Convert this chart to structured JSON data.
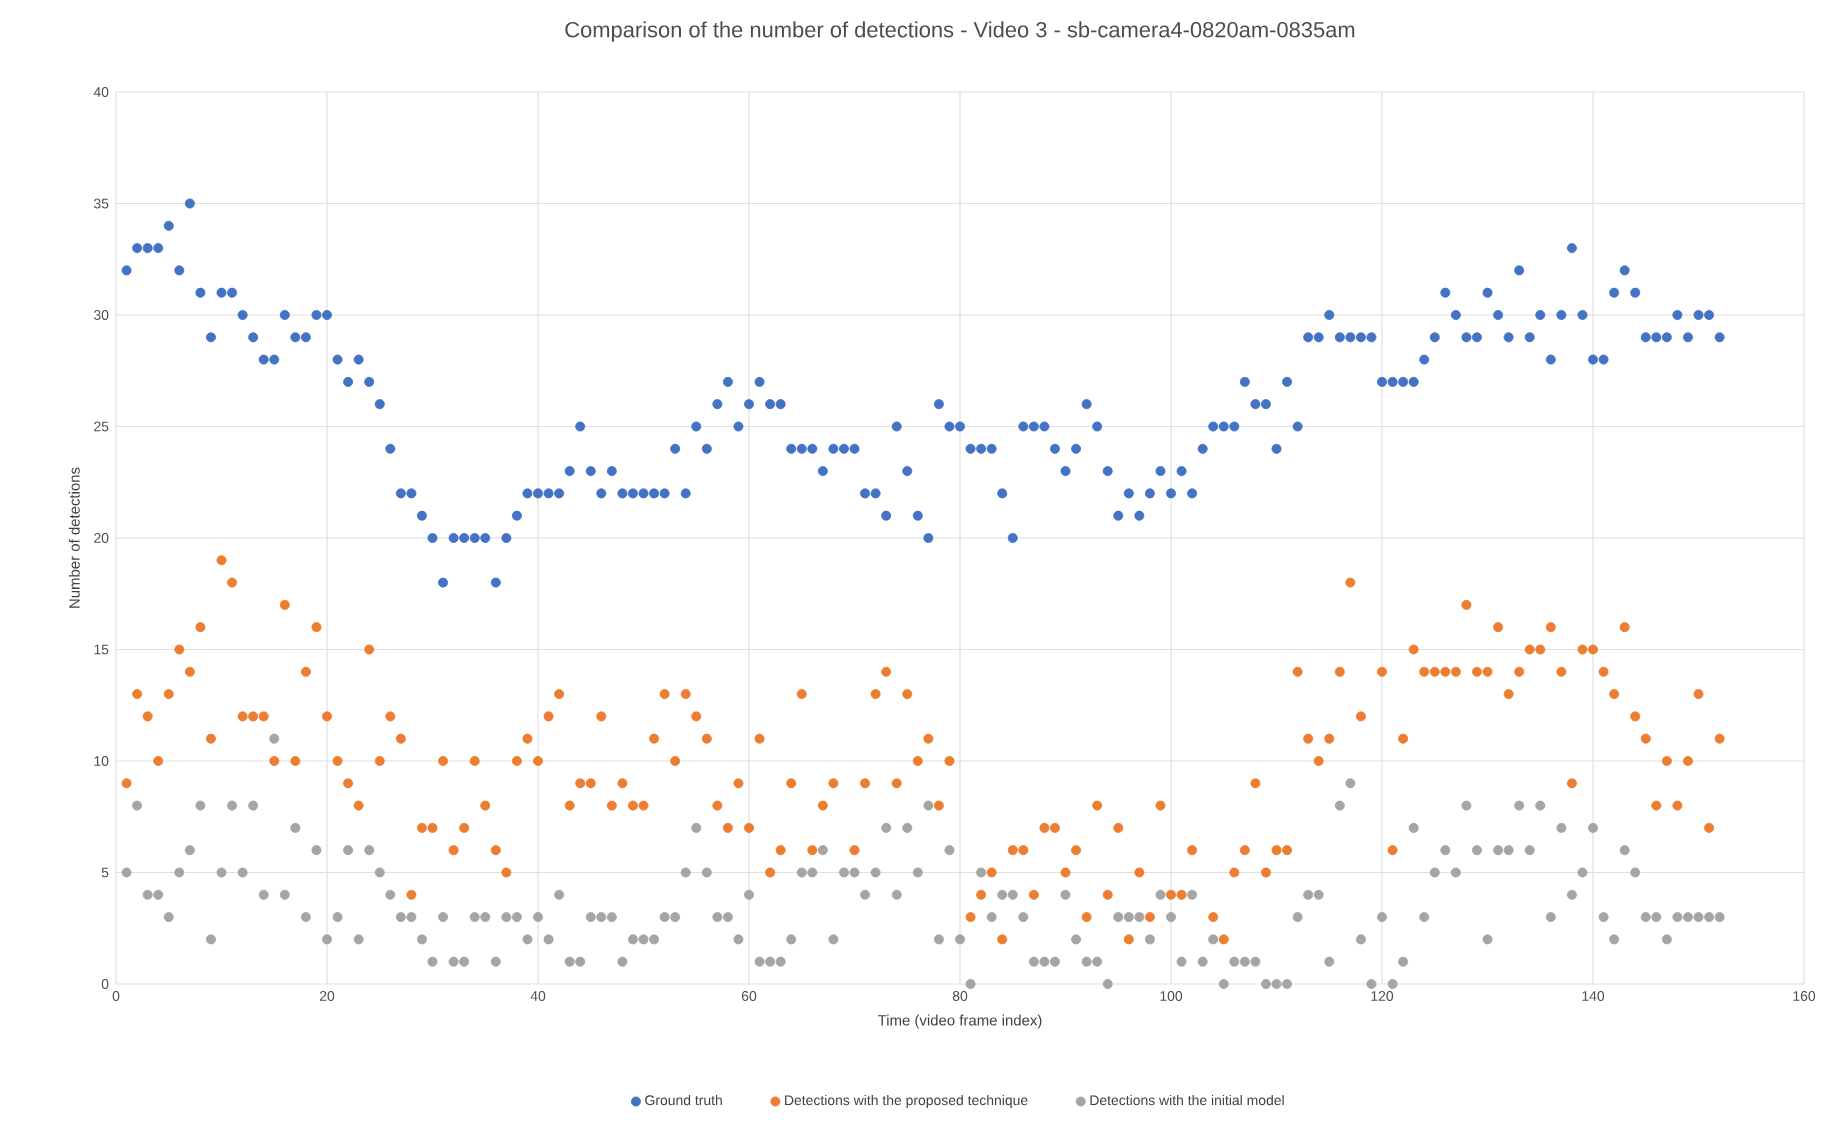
{
  "chart_data": {
    "type": "scatter",
    "title": "Comparison of the number of detections - Video 3 - sb-camera4-0820am-0835am",
    "xlabel": "Time (video frame index)",
    "ylabel": "Number of detections",
    "x": [
      1,
      2,
      3,
      4,
      5,
      6,
      7,
      8,
      9,
      10,
      11,
      12,
      13,
      14,
      15,
      16,
      17,
      18,
      19,
      20,
      21,
      22,
      23,
      24,
      25,
      26,
      27,
      28,
      29,
      30,
      31,
      32,
      33,
      34,
      35,
      36,
      37,
      38,
      39,
      40,
      41,
      42,
      43,
      44,
      45,
      46,
      47,
      48,
      49,
      50,
      51,
      52,
      53,
      54,
      55,
      56,
      57,
      58,
      59,
      60,
      61,
      62,
      63,
      64,
      65,
      66,
      67,
      68,
      69,
      70,
      71,
      72,
      73,
      74,
      75,
      76,
      77,
      78,
      79,
      80,
      81,
      82,
      83,
      84,
      85,
      86,
      87,
      88,
      89,
      90,
      91,
      92,
      93,
      94,
      95,
      96,
      97,
      98,
      99,
      100,
      101,
      102,
      103,
      104,
      105,
      106,
      107,
      108,
      109,
      110,
      111,
      112,
      113,
      114,
      115,
      116,
      117,
      118,
      119,
      120,
      121,
      122,
      123,
      124,
      125,
      126,
      127,
      128,
      129,
      130,
      131,
      132,
      133,
      134,
      135,
      136,
      137,
      138,
      139,
      140,
      141,
      142,
      143,
      144,
      145,
      146,
      147,
      148,
      149,
      150,
      151,
      152
    ],
    "series": [
      {
        "name": "Ground truth",
        "color": "#4472c4",
        "values": [
          32,
          33,
          33,
          33,
          34,
          32,
          35,
          31,
          29,
          31,
          31,
          30,
          29,
          28,
          28,
          30,
          29,
          29,
          30,
          30,
          28,
          27,
          28,
          27,
          26,
          24,
          22,
          22,
          21,
          20,
          18,
          20,
          20,
          20,
          20,
          18,
          20,
          21,
          22,
          22,
          22,
          22,
          23,
          25,
          23,
          22,
          23,
          22,
          22,
          22,
          22,
          22,
          24,
          22,
          25,
          24,
          26,
          27,
          25,
          26,
          27,
          26,
          26,
          24,
          24,
          24,
          23,
          24,
          24,
          24,
          22,
          22,
          21,
          25,
          23,
          21,
          20,
          26,
          25,
          25,
          24,
          24,
          24,
          22,
          20,
          25,
          25,
          25,
          24,
          23,
          24,
          26,
          25,
          23,
          21,
          22,
          21,
          22,
          23,
          22,
          23,
          22,
          24,
          25,
          25,
          25,
          27,
          26,
          26,
          24,
          27,
          25,
          29,
          29,
          30,
          29,
          29,
          29,
          29,
          27,
          27,
          27,
          27,
          28,
          29,
          31,
          30,
          29,
          29,
          31,
          30,
          29,
          32,
          29,
          30,
          28,
          30,
          33,
          30,
          28,
          28,
          31,
          32,
          31,
          29,
          29,
          29,
          30,
          29,
          30,
          30,
          29
        ]
      },
      {
        "name": "Detections with the proposed technique",
        "color": "#ed7d31",
        "values": [
          9,
          13,
          12,
          10,
          13,
          15,
          14,
          16,
          11,
          19,
          18,
          12,
          12,
          12,
          10,
          17,
          10,
          14,
          16,
          12,
          10,
          9,
          8,
          15,
          10,
          12,
          11,
          4,
          7,
          7,
          10,
          6,
          7,
          10,
          8,
          6,
          5,
          10,
          11,
          10,
          12,
          13,
          8,
          9,
          9,
          12,
          8,
          9,
          8,
          8,
          11,
          13,
          10,
          13,
          12,
          11,
          8,
          7,
          9,
          7,
          11,
          5,
          6,
          9,
          13,
          6,
          8,
          9,
          null,
          6,
          9,
          13,
          14,
          9,
          13,
          10,
          11,
          8,
          10,
          null,
          3,
          4,
          5,
          2,
          6,
          6,
          4,
          7,
          7,
          5,
          6,
          3,
          8,
          4,
          7,
          2,
          5,
          3,
          8,
          4,
          4,
          6,
          null,
          3,
          2,
          5,
          6,
          9,
          5,
          6,
          6,
          14,
          11,
          10,
          11,
          14,
          18,
          12,
          null,
          14,
          6,
          11,
          15,
          14,
          14,
          14,
          14,
          17,
          14,
          14,
          16,
          13,
          14,
          15,
          15,
          16,
          14,
          9,
          15,
          15,
          14,
          13,
          16,
          12,
          11,
          8,
          10,
          8,
          10,
          13,
          7,
          11
        ]
      },
      {
        "name": "Detections with the initial model",
        "color": "#a5a5a5",
        "values": [
          5,
          8,
          4,
          4,
          3,
          5,
          6,
          8,
          2,
          5,
          8,
          5,
          8,
          4,
          11,
          4,
          7,
          3,
          6,
          2,
          3,
          6,
          2,
          6,
          5,
          4,
          3,
          3,
          2,
          1,
          3,
          1,
          1,
          3,
          3,
          1,
          3,
          3,
          2,
          3,
          2,
          4,
          1,
          1,
          3,
          3,
          3,
          1,
          2,
          2,
          2,
          3,
          3,
          5,
          7,
          5,
          3,
          3,
          2,
          4,
          1,
          1,
          1,
          2,
          5,
          5,
          6,
          2,
          5,
          5,
          4,
          5,
          7,
          4,
          7,
          5,
          8,
          2,
          6,
          2,
          0,
          5,
          3,
          4,
          4,
          3,
          1,
          1,
          1,
          4,
          2,
          1,
          1,
          0,
          3,
          3,
          3,
          2,
          4,
          3,
          1,
          4,
          1,
          2,
          0,
          1,
          1,
          1,
          0,
          0,
          0,
          3,
          4,
          4,
          1,
          8,
          9,
          2,
          0,
          3,
          0,
          1,
          7,
          3,
          5,
          6,
          5,
          8,
          6,
          2,
          6,
          6,
          8,
          6,
          8,
          3,
          7,
          4,
          5,
          7,
          3,
          2,
          6,
          5,
          3,
          3,
          2,
          3,
          3,
          3,
          3,
          3
        ]
      }
    ],
    "xlim": [
      0,
      160
    ],
    "xticks": [
      0,
      20,
      40,
      60,
      80,
      100,
      120,
      140,
      160
    ],
    "ylim": [
      0,
      40
    ],
    "yticks": [
      0,
      5,
      10,
      15,
      20,
      25,
      30,
      35,
      40
    ],
    "grid": true,
    "legend": "bottom"
  }
}
